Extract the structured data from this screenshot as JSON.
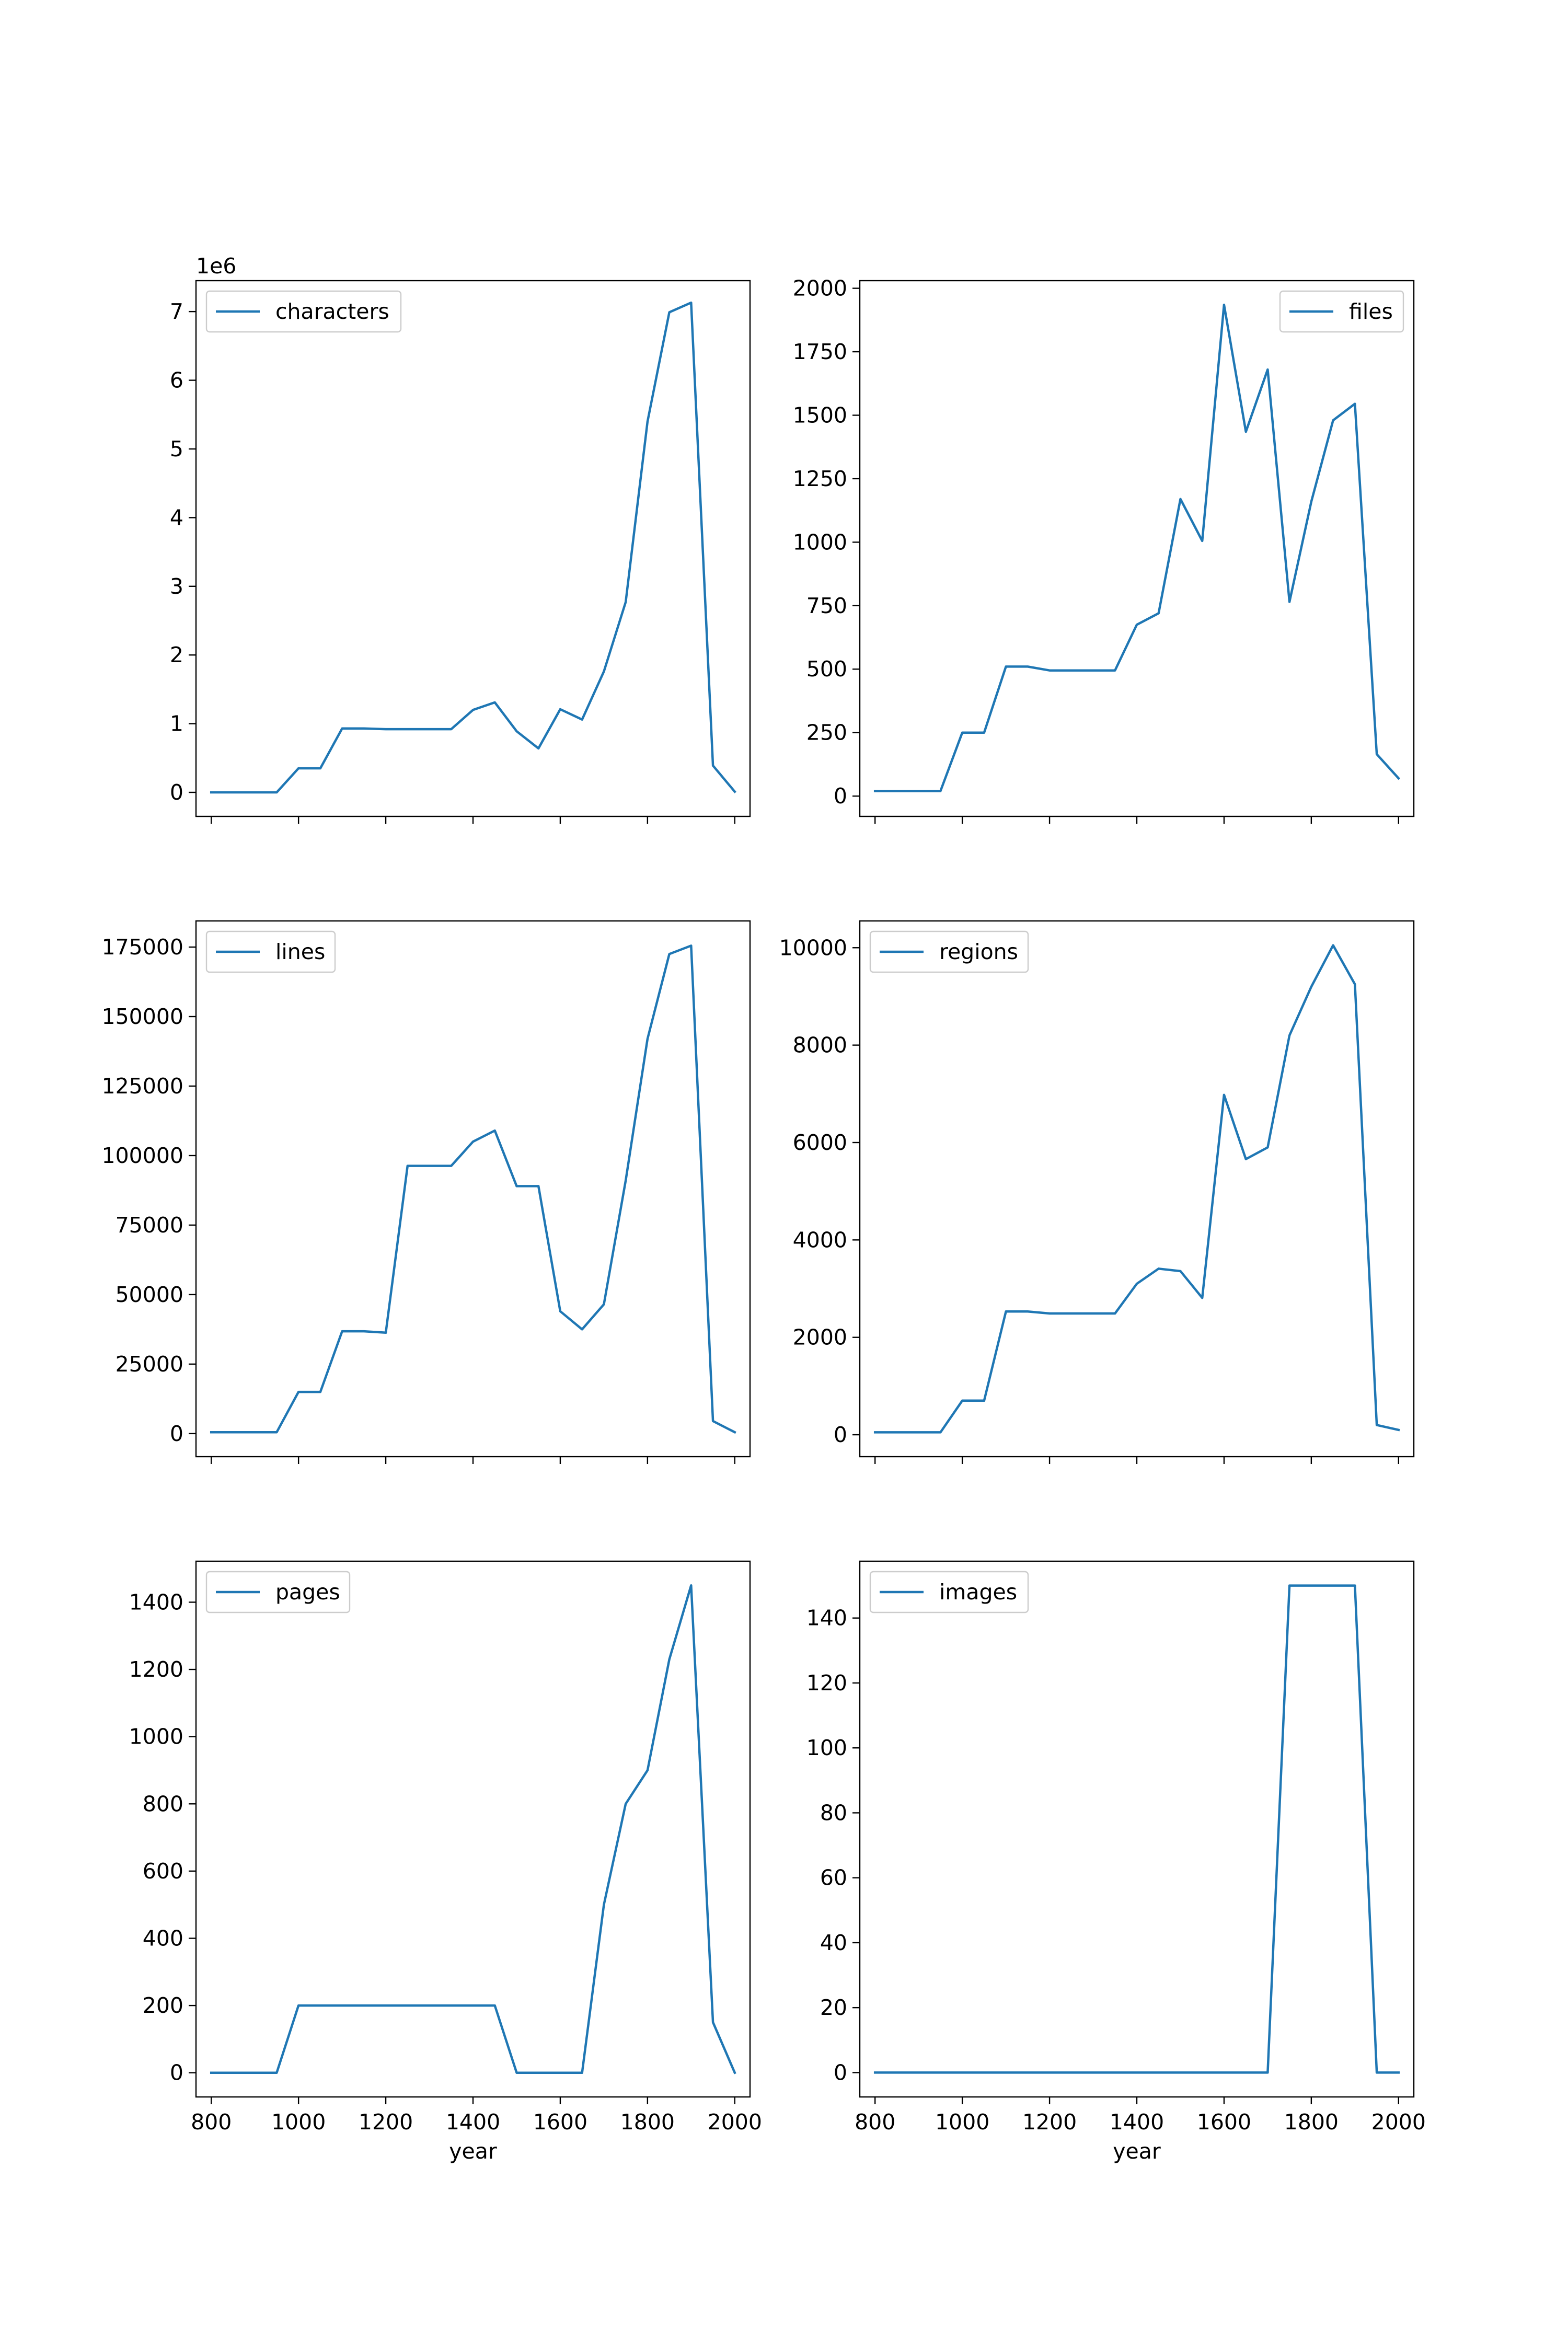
{
  "colors": {
    "line": "#1f77b4"
  },
  "chart_data": [
    {
      "type": "line",
      "series": [
        {
          "name": "characters",
          "values": [
            0,
            0,
            0,
            0,
            350000,
            350000,
            930000,
            930000,
            920000,
            920000,
            920000,
            920000,
            1200000,
            1310000,
            890000,
            640000,
            1210000,
            1060000,
            1760000,
            2770000,
            5400000,
            6990000,
            7130000,
            390000,
            10000
          ]
        }
      ],
      "x": [
        800,
        850,
        900,
        950,
        1000,
        1050,
        1100,
        1150,
        1200,
        1250,
        1300,
        1350,
        1400,
        1450,
        1500,
        1550,
        1600,
        1650,
        1700,
        1750,
        1800,
        1850,
        1900,
        1950,
        2000
      ],
      "xlim": [
        765,
        2035
      ],
      "ylim": [
        -350000,
        7450000
      ],
      "yticks": [
        0,
        1000000,
        2000000,
        3000000,
        4000000,
        5000000,
        6000000,
        7000000
      ],
      "ytick_labels": [
        "0",
        "1",
        "2",
        "3",
        "4",
        "5",
        "6",
        "7"
      ],
      "offset_label": "1e6",
      "xticks": [
        800,
        1000,
        1200,
        1400,
        1600,
        1800,
        2000
      ],
      "xtick_labels": [],
      "xlabel": "",
      "legend": "upper left"
    },
    {
      "type": "line",
      "series": [
        {
          "name": "files",
          "values": [
            20,
            20,
            20,
            20,
            250,
            250,
            510,
            510,
            495,
            495,
            495,
            495,
            675,
            720,
            1170,
            1005,
            1935,
            1435,
            1680,
            765,
            1160,
            1480,
            1545,
            165,
            70
          ]
        }
      ],
      "x": [
        800,
        850,
        900,
        950,
        1000,
        1050,
        1100,
        1150,
        1200,
        1250,
        1300,
        1350,
        1400,
        1450,
        1500,
        1550,
        1600,
        1650,
        1700,
        1750,
        1800,
        1850,
        1900,
        1950,
        2000
      ],
      "xlim": [
        765,
        2035
      ],
      "ylim": [
        -80,
        2030
      ],
      "yticks": [
        0,
        250,
        500,
        750,
        1000,
        1250,
        1500,
        1750,
        2000
      ],
      "ytick_labels": [
        "0",
        "250",
        "500",
        "750",
        "1000",
        "1250",
        "1500",
        "1750",
        "2000"
      ],
      "offset_label": "",
      "xticks": [
        800,
        1000,
        1200,
        1400,
        1600,
        1800,
        2000
      ],
      "xtick_labels": [],
      "xlabel": "",
      "legend": "upper right"
    },
    {
      "type": "line",
      "series": [
        {
          "name": "lines",
          "values": [
            500,
            500,
            500,
            500,
            15000,
            15000,
            36800,
            36800,
            36300,
            96300,
            96300,
            96300,
            105000,
            109000,
            89000,
            89000,
            44000,
            37500,
            46500,
            91000,
            142000,
            172500,
            175500,
            4500,
            500
          ]
        }
      ],
      "x": [
        800,
        850,
        900,
        950,
        1000,
        1050,
        1100,
        1150,
        1200,
        1250,
        1300,
        1350,
        1400,
        1450,
        1500,
        1550,
        1600,
        1650,
        1700,
        1750,
        1800,
        1850,
        1900,
        1950,
        2000
      ],
      "xlim": [
        765,
        2035
      ],
      "ylim": [
        -8300,
        184400
      ],
      "yticks": [
        0,
        25000,
        50000,
        75000,
        100000,
        125000,
        150000,
        175000
      ],
      "ytick_labels": [
        "0",
        "25000",
        "50000",
        "75000",
        "100000",
        "125000",
        "150000",
        "175000"
      ],
      "offset_label": "",
      "xticks": [
        800,
        1000,
        1200,
        1400,
        1600,
        1800,
        2000
      ],
      "xtick_labels": [],
      "xlabel": "",
      "legend": "upper left"
    },
    {
      "type": "line",
      "series": [
        {
          "name": "regions",
          "values": [
            50,
            50,
            50,
            50,
            700,
            700,
            2530,
            2530,
            2490,
            2490,
            2490,
            2490,
            3100,
            3410,
            3360,
            2810,
            6980,
            5660,
            5900,
            8200,
            9200,
            10050,
            9250,
            200,
            100
          ]
        }
      ],
      "x": [
        800,
        850,
        900,
        950,
        1000,
        1050,
        1100,
        1150,
        1200,
        1250,
        1300,
        1350,
        1400,
        1450,
        1500,
        1550,
        1600,
        1650,
        1700,
        1750,
        1800,
        1850,
        1900,
        1950,
        2000
      ],
      "xlim": [
        765,
        2035
      ],
      "ylim": [
        -450,
        10550
      ],
      "yticks": [
        0,
        2000,
        4000,
        6000,
        8000,
        10000
      ],
      "ytick_labels": [
        "0",
        "2000",
        "4000",
        "6000",
        "8000",
        "10000"
      ],
      "offset_label": "",
      "xticks": [
        800,
        1000,
        1200,
        1400,
        1600,
        1800,
        2000
      ],
      "xtick_labels": [],
      "xlabel": "",
      "legend": "upper left"
    },
    {
      "type": "line",
      "series": [
        {
          "name": "pages",
          "values": [
            0,
            0,
            0,
            0,
            200,
            200,
            200,
            200,
            200,
            200,
            200,
            200,
            200,
            200,
            0,
            0,
            0,
            0,
            500,
            800,
            900,
            1230,
            1450,
            150,
            0
          ]
        }
      ],
      "x": [
        800,
        850,
        900,
        950,
        1000,
        1050,
        1100,
        1150,
        1200,
        1250,
        1300,
        1350,
        1400,
        1450,
        1500,
        1550,
        1600,
        1650,
        1700,
        1750,
        1800,
        1850,
        1900,
        1950,
        2000
      ],
      "xlim": [
        765,
        2035
      ],
      "ylim": [
        -72,
        1522
      ],
      "yticks": [
        0,
        200,
        400,
        600,
        800,
        1000,
        1200,
        1400
      ],
      "ytick_labels": [
        "0",
        "200",
        "400",
        "600",
        "800",
        "1000",
        "1200",
        "1400"
      ],
      "offset_label": "",
      "xticks": [
        800,
        1000,
        1200,
        1400,
        1600,
        1800,
        2000
      ],
      "xtick_labels": [
        "800",
        "1000",
        "1200",
        "1400",
        "1600",
        "1800",
        "2000"
      ],
      "xlabel": "year",
      "legend": "upper left"
    },
    {
      "type": "line",
      "series": [
        {
          "name": "images",
          "values": [
            0,
            0,
            0,
            0,
            0,
            0,
            0,
            0,
            0,
            0,
            0,
            0,
            0,
            0,
            0,
            0,
            0,
            0,
            0,
            150,
            150,
            150,
            150,
            0,
            0
          ]
        }
      ],
      "x": [
        800,
        850,
        900,
        950,
        1000,
        1050,
        1100,
        1150,
        1200,
        1250,
        1300,
        1350,
        1400,
        1450,
        1500,
        1550,
        1600,
        1650,
        1700,
        1750,
        1800,
        1850,
        1900,
        1950,
        2000
      ],
      "xlim": [
        765,
        2035
      ],
      "ylim": [
        -7.5,
        157.5
      ],
      "yticks": [
        0,
        20,
        40,
        60,
        80,
        100,
        120,
        140
      ],
      "ytick_labels": [
        "0",
        "20",
        "40",
        "60",
        "80",
        "100",
        "120",
        "140"
      ],
      "offset_label": "",
      "xticks": [
        800,
        1000,
        1200,
        1400,
        1600,
        1800,
        2000
      ],
      "xtick_labels": [
        "800",
        "1000",
        "1200",
        "1400",
        "1600",
        "1800",
        "2000"
      ],
      "xlabel": "year",
      "legend": "upper left"
    }
  ]
}
